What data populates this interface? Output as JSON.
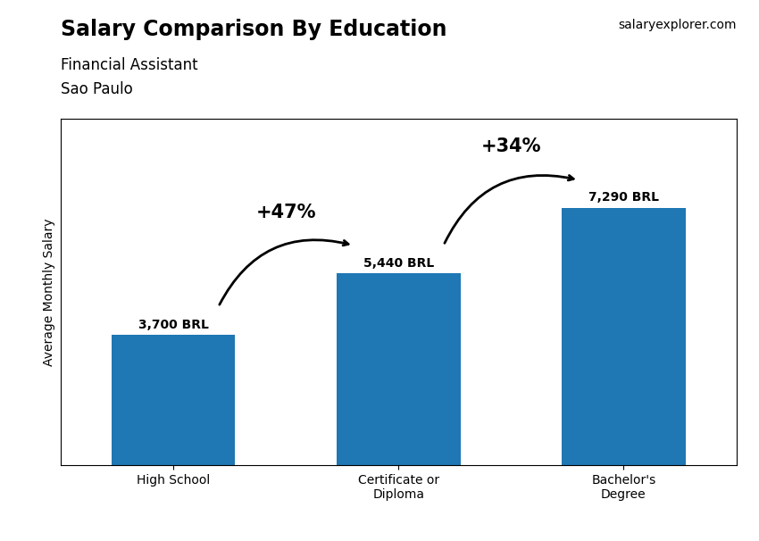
{
  "chart_data": {
    "type": "bar",
    "title": "Salary Comparison By Education",
    "subtitle": [
      "Financial Assistant",
      "Sao Paulo"
    ],
    "ylabel": "Average Monthly Salary",
    "categories": [
      "High School",
      "Certificate or\nDiploma",
      "Bachelor's\nDegree"
    ],
    "values": [
      3700,
      5440,
      7290
    ],
    "value_labels": [
      "3,700 BRL",
      "5,440 BRL",
      "7,290 BRL"
    ],
    "data_labels": true,
    "ylim": [
      0,
      9800
    ],
    "tick_labels": "x",
    "annotations": [
      {
        "text": "+47%",
        "from": "High School",
        "to": "Certificate or\nDiploma"
      },
      {
        "text": "+34%",
        "from": "Certificate or\nDiploma",
        "to": "Bachelor's\nDegree"
      },
      {
        "text": "salaryexplorer.com"
      }
    ]
  }
}
